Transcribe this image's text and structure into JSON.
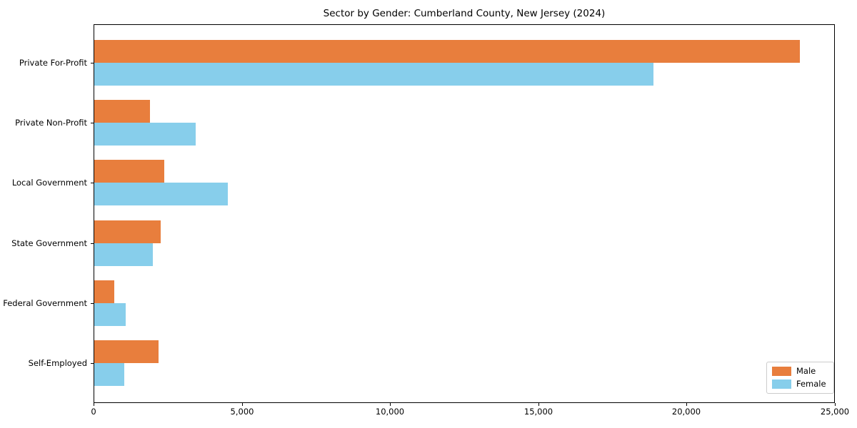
{
  "title": "Sector by Gender: Cumberland County, New Jersey (2024)",
  "chart_data": {
    "type": "bar",
    "orientation": "horizontal",
    "title": "Sector by Gender: Cumberland County, New Jersey (2024)",
    "categories": [
      "Private For-Profit",
      "Private Non-Profit",
      "Local Government",
      "State Government",
      "Federal Government",
      "Self-Employed"
    ],
    "series": [
      {
        "name": "Male",
        "color": "#e87e3d",
        "values": [
          23800,
          1890,
          2360,
          2240,
          680,
          2160
        ]
      },
      {
        "name": "Female",
        "color": "#87ceeb",
        "values": [
          18860,
          3430,
          4510,
          1980,
          1060,
          1000
        ]
      }
    ],
    "xlim": [
      0,
      25000
    ],
    "xticks": [
      0,
      5000,
      10000,
      15000,
      20000,
      25000
    ],
    "xtick_labels": [
      "0",
      "5,000",
      "10,000",
      "15,000",
      "20,000",
      "25,000"
    ],
    "xlabel": "",
    "ylabel": "",
    "grid": false,
    "legend": {
      "position": "lower-right",
      "labels": [
        "Male",
        "Female"
      ]
    }
  }
}
